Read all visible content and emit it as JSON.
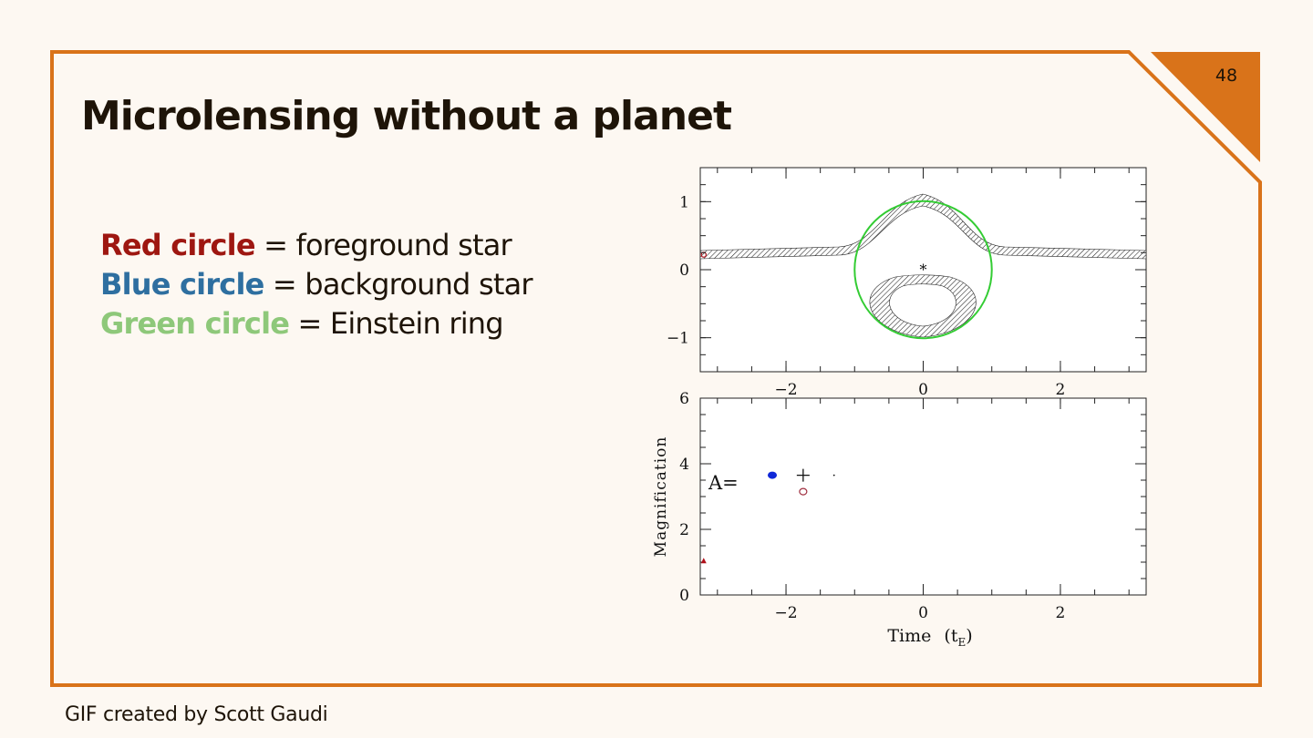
{
  "slide": {
    "number": "48",
    "title": "Microlensing without a planet",
    "footer_credit": "GIF created by Scott Gaudi",
    "accent_color": "#d9731a"
  },
  "legend": [
    {
      "term": "Red circle",
      "description": "= foreground star",
      "color": "#9e1711"
    },
    {
      "term": "Blue circle",
      "description": "= background star",
      "color": "#2e6fa0"
    },
    {
      "term": "Green circle",
      "description": "= Einstein ring",
      "color": "#8ec87a"
    }
  ],
  "chart_data": [
    {
      "type": "scatter",
      "panel": "sky",
      "xlim": [
        -3.25,
        3.25
      ],
      "ylim": [
        -1.5,
        1.5
      ],
      "x_ticks": [
        -2,
        0,
        2
      ],
      "y_ticks": [
        1,
        0,
        -1
      ],
      "x_tick_labels": [
        "−2",
        "0",
        "2"
      ],
      "y_tick_labels": [
        "1",
        "0",
        "−1"
      ],
      "einstein_ring": {
        "center": [
          0,
          0
        ],
        "radius": 1,
        "color": "#33cc33"
      },
      "lens_star": {
        "x": 0,
        "y": 0,
        "marker": "*",
        "color": "#f0b020"
      },
      "source_track_y": 0.22,
      "source_position": {
        "x": -3.2,
        "y": 0.22,
        "color": "#b0101a"
      }
    },
    {
      "type": "line",
      "panel": "light-curve",
      "xlabel": "Time",
      "xlabel_unit": "t",
      "xlabel_unit_sub": "E",
      "ylabel": "Magnification",
      "xlim": [
        -3.25,
        3.25
      ],
      "ylim": [
        0,
        6
      ],
      "x_ticks": [
        -2,
        0,
        2
      ],
      "y_ticks": [
        0,
        2,
        4,
        6
      ],
      "x_tick_labels": [
        "−2",
        "0",
        "2"
      ],
      "y_tick_labels": [
        "0",
        "2",
        "4",
        "6"
      ],
      "current_point": {
        "x": -3.2,
        "y": 1.05,
        "color": "#b0101a"
      },
      "readout_label": "A=",
      "readout_symbols": [
        {
          "x": -2.2,
          "y": 3.65,
          "marker": "filled-circle",
          "color": "#1028d8"
        },
        {
          "x": -1.75,
          "y": 3.65,
          "marker": "plus",
          "color": "#111111"
        },
        {
          "x": -1.75,
          "y": 3.15,
          "marker": "open-circle",
          "color": "#a03040"
        },
        {
          "x": -1.3,
          "y": 3.65,
          "marker": "dot",
          "color": "#111111"
        }
      ]
    }
  ]
}
